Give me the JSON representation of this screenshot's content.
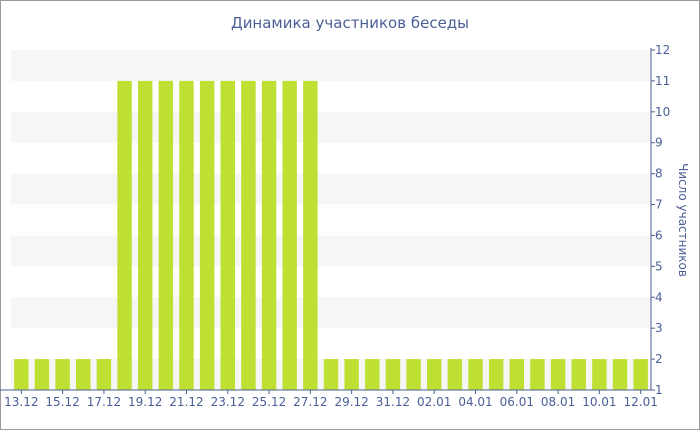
{
  "chart_data": {
    "type": "bar",
    "title": "Динамика участников беседы",
    "ylabel": "Число участников",
    "xlabel": "",
    "ylim": [
      1,
      12
    ],
    "y_ticks": [
      1,
      2,
      3,
      4,
      5,
      6,
      7,
      8,
      9,
      10,
      11,
      12
    ],
    "y_axis_side": "right",
    "grid": "alternating horizontal bands",
    "bar_color": "#bde033",
    "band_color": "#f6f6f6",
    "text_color": "#4a5f96",
    "categories": [
      "13.12",
      "14.12",
      "15.12",
      "16.12",
      "17.12",
      "18.12",
      "19.12",
      "20.12",
      "21.12",
      "22.12",
      "23.12",
      "24.12",
      "25.12",
      "26.12",
      "27.12",
      "28.12",
      "29.12",
      "30.12",
      "31.12",
      "01.01",
      "02.01",
      "03.01",
      "04.01",
      "05.01",
      "06.01",
      "07.01",
      "08.01",
      "09.01",
      "10.01",
      "11.01",
      "12.01"
    ],
    "x_tick_labels": [
      "13.12",
      "15.12",
      "17.12",
      "19.12",
      "21.12",
      "23.12",
      "25.12",
      "27.12",
      "29.12",
      "31.12",
      "02.01",
      "04.01",
      "06.01",
      "08.01",
      "10.01",
      "12.01"
    ],
    "values": [
      2,
      2,
      2,
      2,
      2,
      11,
      11,
      11,
      11,
      11,
      11,
      11,
      11,
      11,
      11,
      2,
      2,
      2,
      2,
      2,
      2,
      2,
      2,
      2,
      2,
      2,
      2,
      2,
      2,
      2,
      2
    ]
  }
}
